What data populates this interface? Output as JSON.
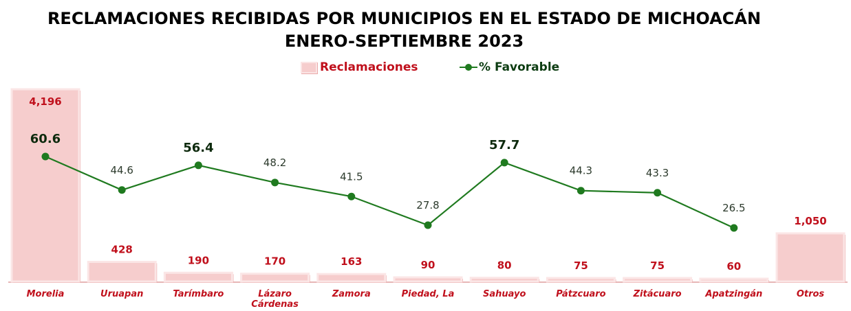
{
  "chart_data": {
    "type": "bar",
    "title": "RECLAMACIONES RECIBIDAS POR MUNICIPIOS EN EL ESTADO DE MICHOACÁN",
    "subtitle": "ENERO-SEPTIEMBRE 2023",
    "categories": [
      "Morelia",
      "Uruapan",
      "Tarímbaro",
      "Lázaro Cárdenas",
      "Zamora",
      "Piedad, La",
      "Sahuayo",
      "Pátzcuaro",
      "Zitácuaro",
      "Apatzingán",
      "Otros"
    ],
    "category_lines": [
      [
        "Morelia"
      ],
      [
        "Uruapan"
      ],
      [
        "Tarímbaro"
      ],
      [
        "Lázaro",
        "Cárdenas"
      ],
      [
        "Zamora"
      ],
      [
        "Piedad, La"
      ],
      [
        "Sahuayo"
      ],
      [
        "Pátzcuaro"
      ],
      [
        "Zitácuaro"
      ],
      [
        "Apatzingán"
      ],
      [
        "Otros"
      ]
    ],
    "series": [
      {
        "name": "Reclamaciones",
        "type": "bar",
        "values": [
          4196,
          428,
          190,
          170,
          163,
          90,
          80,
          75,
          75,
          60,
          1050
        ],
        "labels": [
          "4,196",
          "428",
          "190",
          "170",
          "163",
          "90",
          "80",
          "75",
          "75",
          "60",
          "1,050"
        ]
      },
      {
        "name": "% Favorable",
        "type": "line",
        "values": [
          60.6,
          44.6,
          56.4,
          48.2,
          41.5,
          27.8,
          57.7,
          44.3,
          43.3,
          26.5,
          null
        ],
        "labels": [
          "60.6",
          "44.6",
          "56.4",
          "48.2",
          "41.5",
          "27.8",
          "57.7",
          "44.3",
          "43.3",
          "26.5",
          ""
        ],
        "emphasized": [
          true,
          false,
          true,
          false,
          false,
          false,
          true,
          false,
          false,
          false,
          false
        ]
      }
    ],
    "legend_position": "top-center",
    "grid": false,
    "colors": {
      "bar_fill": "#f6cdcd",
      "bar_edge": "#fbe6e6",
      "bar_shadow": "#e8a3a3",
      "bar_label": "#c0101c",
      "line": "#1f7a1f",
      "line_label": "#0d2a0d",
      "baseline": "#e7b5b5"
    }
  }
}
